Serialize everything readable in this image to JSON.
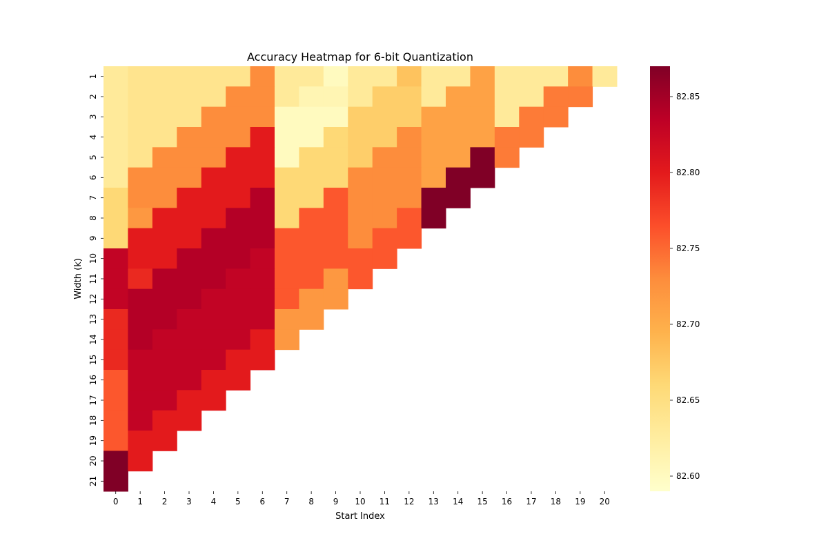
{
  "chart_data": {
    "type": "heatmap",
    "title": "Accuracy Heatmap for 6-bit Quantization",
    "xlabel": "Start Index",
    "ylabel": "Width (k)",
    "x_categories": [
      "0",
      "1",
      "2",
      "3",
      "4",
      "5",
      "6",
      "7",
      "8",
      "9",
      "10",
      "11",
      "12",
      "13",
      "14",
      "15",
      "16",
      "17",
      "18",
      "19",
      "20"
    ],
    "y_categories": [
      "1",
      "2",
      "3",
      "4",
      "5",
      "6",
      "7",
      "8",
      "9",
      "10",
      "11",
      "12",
      "13",
      "14",
      "15",
      "16",
      "17",
      "18",
      "19",
      "20",
      "21"
    ],
    "colorbar": {
      "colormap": "YlOrRd",
      "vmin": 82.59,
      "vmax": 82.87,
      "ticks": [
        82.6,
        82.65,
        82.7,
        82.75,
        82.8,
        82.85
      ],
      "tick_labels": [
        "82.60",
        "82.65",
        "82.70",
        "82.75",
        "82.80",
        "82.85"
      ]
    },
    "values": [
      [
        82.63,
        82.64,
        82.64,
        82.64,
        82.64,
        82.64,
        82.73,
        82.63,
        82.63,
        82.6,
        82.63,
        82.63,
        82.68,
        82.63,
        82.63,
        82.71,
        82.63,
        82.63,
        82.63,
        82.73,
        82.63
      ],
      [
        82.63,
        82.64,
        82.64,
        82.64,
        82.64,
        82.73,
        82.73,
        82.63,
        82.61,
        82.61,
        82.63,
        82.67,
        82.67,
        82.63,
        82.71,
        82.71,
        82.63,
        82.63,
        82.74,
        82.74
      ],
      [
        82.63,
        82.64,
        82.64,
        82.64,
        82.73,
        82.73,
        82.73,
        82.6,
        82.6,
        82.6,
        82.67,
        82.67,
        82.67,
        82.71,
        82.71,
        82.71,
        82.63,
        82.74,
        82.74
      ],
      [
        82.63,
        82.64,
        82.64,
        82.73,
        82.73,
        82.73,
        82.8,
        82.6,
        82.6,
        82.66,
        82.67,
        82.67,
        82.73,
        82.71,
        82.71,
        82.71,
        82.74,
        82.74
      ],
      [
        82.63,
        82.64,
        82.73,
        82.73,
        82.73,
        82.8,
        82.8,
        82.6,
        82.66,
        82.66,
        82.67,
        82.73,
        82.73,
        82.71,
        82.71,
        82.87,
        82.74
      ],
      [
        82.63,
        82.73,
        82.73,
        82.73,
        82.8,
        82.8,
        82.8,
        82.66,
        82.66,
        82.66,
        82.73,
        82.73,
        82.73,
        82.71,
        82.87,
        82.87
      ],
      [
        82.66,
        82.73,
        82.73,
        82.8,
        82.8,
        82.8,
        82.84,
        82.66,
        82.66,
        82.76,
        82.73,
        82.73,
        82.73,
        82.87,
        82.87
      ],
      [
        82.66,
        82.72,
        82.8,
        82.8,
        82.8,
        82.84,
        82.84,
        82.66,
        82.76,
        82.76,
        82.73,
        82.73,
        82.76,
        82.87
      ],
      [
        82.66,
        82.8,
        82.8,
        82.8,
        82.84,
        82.84,
        82.84,
        82.76,
        82.76,
        82.76,
        82.73,
        82.76,
        82.76
      ],
      [
        82.83,
        82.8,
        82.8,
        82.84,
        82.84,
        82.84,
        82.83,
        82.76,
        82.76,
        82.76,
        82.76,
        82.76
      ],
      [
        82.83,
        82.79,
        82.84,
        82.84,
        82.84,
        82.83,
        82.83,
        82.76,
        82.76,
        82.72,
        82.76
      ],
      [
        82.83,
        82.84,
        82.84,
        82.84,
        82.83,
        82.83,
        82.83,
        82.76,
        82.72,
        82.72
      ],
      [
        82.79,
        82.84,
        82.84,
        82.83,
        82.83,
        82.83,
        82.83,
        82.72,
        82.72
      ],
      [
        82.79,
        82.84,
        82.83,
        82.83,
        82.83,
        82.83,
        82.8,
        82.72
      ],
      [
        82.79,
        82.83,
        82.83,
        82.83,
        82.83,
        82.8,
        82.8
      ],
      [
        82.76,
        82.83,
        82.83,
        82.83,
        82.8,
        82.8
      ],
      [
        82.76,
        82.83,
        82.83,
        82.8,
        82.8
      ],
      [
        82.76,
        82.83,
        82.8,
        82.8
      ],
      [
        82.76,
        82.8,
        82.8
      ],
      [
        82.87,
        82.8
      ],
      [
        82.87
      ]
    ]
  }
}
